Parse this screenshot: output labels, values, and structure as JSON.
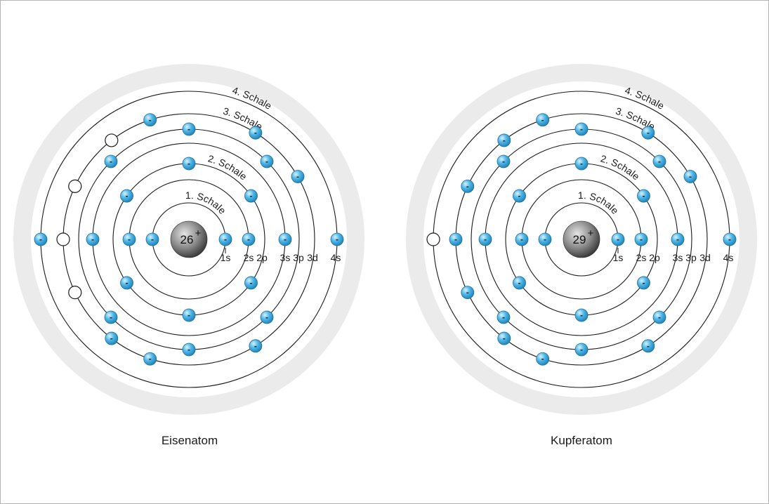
{
  "atoms": [
    {
      "id": "eisen",
      "caption": "Eisenatom",
      "nucleus": {
        "charge": "26",
        "sign": "+"
      },
      "shell_labels": [
        "1. Schale",
        "2. Schale",
        "3. Schale",
        "4. Schale"
      ],
      "orbital_labels": [
        "1s",
        "2s",
        "2p",
        "3s",
        "3p",
        "3d",
        "4s"
      ],
      "electron_counts": {
        "1s": 2,
        "2s": 2,
        "2p": 6,
        "3s": 2,
        "3p": 6,
        "3d": 6,
        "4s": 2
      },
      "vacancies": {
        "3d": 4,
        "4s": 0
      }
    },
    {
      "id": "kupfer",
      "caption": "Kupferatom",
      "nucleus": {
        "charge": "29",
        "sign": "+"
      },
      "shell_labels": [
        "1. Schale",
        "2. Schale",
        "3. Schale",
        "4. Schale"
      ],
      "orbital_labels": [
        "1s",
        "2s",
        "2p",
        "3s",
        "3p",
        "3d",
        "4s"
      ],
      "electron_counts": {
        "1s": 2,
        "2s": 2,
        "2p": 6,
        "3s": 2,
        "3p": 6,
        "3d": 10,
        "4s": 1
      },
      "vacancies": {
        "3d": 0,
        "4s": 1
      }
    }
  ],
  "electron_symbol": "-",
  "colors": {
    "halo": "#ebebeb",
    "ring": "#1a1a1a",
    "electron": "#3aa6dc",
    "electron_edge": "#1b6f9c",
    "nucleus_light": "#cfcfcf",
    "nucleus_dark": "#3a3a3a",
    "vacancy": "#ffffff"
  }
}
